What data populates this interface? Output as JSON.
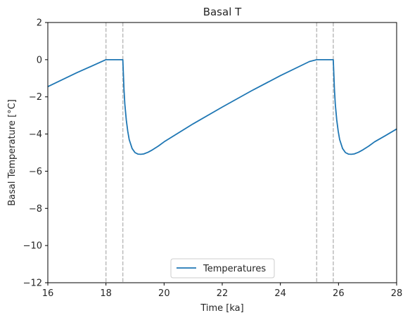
{
  "chart_data": {
    "type": "line",
    "title": "Basal T",
    "xlabel": "Time [ka]",
    "ylabel": "Basal Temperature [°C]",
    "xlim": [
      16,
      28
    ],
    "ylim": [
      -12,
      2
    ],
    "xticks": [
      16,
      18,
      20,
      22,
      24,
      26,
      28
    ],
    "yticks": [
      2,
      0,
      -2,
      -4,
      -6,
      -8,
      -10,
      -12
    ],
    "legend_position": "lower center",
    "grid": false,
    "series": [
      {
        "name": "Temperatures",
        "color": "#1f77b4",
        "x": [
          16.0,
          17.0,
          18.0,
          18.58,
          18.6,
          18.62,
          18.65,
          18.7,
          18.75,
          18.8,
          18.9,
          19.0,
          19.1,
          19.2,
          19.3,
          19.45,
          19.6,
          19.8,
          20.0,
          21.0,
          22.0,
          23.0,
          24.0,
          25.0,
          25.25,
          25.82,
          25.84,
          25.86,
          25.89,
          25.94,
          25.99,
          26.04,
          26.14,
          26.24,
          26.34,
          26.44,
          26.54,
          26.69,
          26.84,
          27.04,
          27.24,
          27.6,
          28.0
        ],
        "y": [
          -1.45,
          -0.7,
          0.0,
          0.0,
          -0.8,
          -1.6,
          -2.4,
          -3.25,
          -3.85,
          -4.3,
          -4.78,
          -5.0,
          -5.08,
          -5.09,
          -5.07,
          -4.98,
          -4.85,
          -4.65,
          -4.42,
          -3.45,
          -2.55,
          -1.68,
          -0.86,
          -0.1,
          0.0,
          0.0,
          -0.8,
          -1.6,
          -2.4,
          -3.25,
          -3.85,
          -4.3,
          -4.78,
          -5.0,
          -5.08,
          -5.09,
          -5.07,
          -4.98,
          -4.85,
          -4.65,
          -4.42,
          -4.1,
          -3.73
        ]
      }
    ],
    "vlines": [
      18.0,
      18.58,
      25.25,
      25.82
    ],
    "vline_color": "#bbbbbb"
  }
}
